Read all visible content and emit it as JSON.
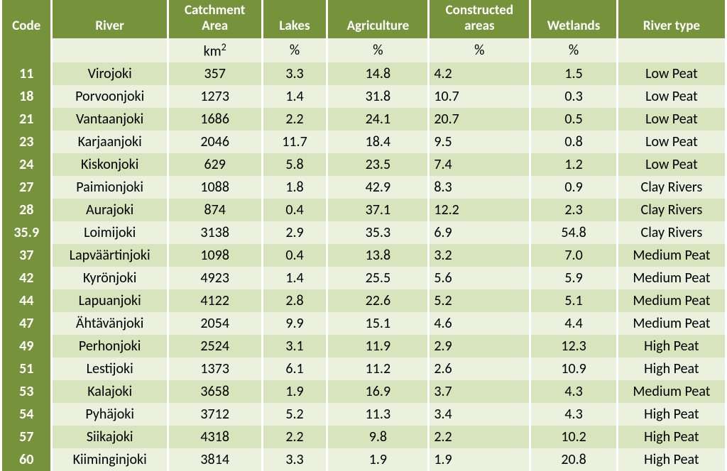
{
  "table": {
    "colors": {
      "header_bg": "#76933c",
      "header_fg": "#ffffff",
      "row_odd_bg": "#ebf1de",
      "row_even_bg": "#d8e4bc",
      "border": "#ffffff",
      "text": "#000000"
    },
    "font": {
      "family": "Calibri",
      "header_size_pt": 19,
      "cell_size_pt": 20,
      "header_weight": 700
    },
    "column_widths_pct": [
      7,
      16,
      13,
      9,
      14,
      14,
      12,
      15
    ],
    "columns": [
      {
        "key": "code",
        "label": "Code",
        "unit": ""
      },
      {
        "key": "river",
        "label": "River",
        "unit": ""
      },
      {
        "key": "catchment",
        "label": "Catchment Area",
        "unit": "km²"
      },
      {
        "key": "lakes",
        "label": "Lakes",
        "unit": "%"
      },
      {
        "key": "agriculture",
        "label": "Agriculture",
        "unit": "%"
      },
      {
        "key": "constructed",
        "label": "Constructed areas",
        "unit": "%"
      },
      {
        "key": "wetlands",
        "label": "Wetlands",
        "unit": "%"
      },
      {
        "key": "rivertype",
        "label": "River type",
        "unit": ""
      }
    ],
    "rows": [
      {
        "code": "11",
        "river": "Virojoki",
        "catchment": "357",
        "lakes": "3.3",
        "agriculture": "14.8",
        "constructed": "4.2",
        "wetlands": "1.5",
        "rivertype": "Low Peat"
      },
      {
        "code": "18",
        "river": "Porvoonjoki",
        "catchment": "1273",
        "lakes": "1.4",
        "agriculture": "31.8",
        "constructed": "10.7",
        "wetlands": "0.3",
        "rivertype": "Low Peat"
      },
      {
        "code": "21",
        "river": "Vantaanjoki",
        "catchment": "1686",
        "lakes": "2.2",
        "agriculture": "24.1",
        "constructed": "20.7",
        "wetlands": "0.5",
        "rivertype": "Low Peat"
      },
      {
        "code": "23",
        "river": "Karjaanjoki",
        "catchment": "2046",
        "lakes": "11.7",
        "agriculture": "18.4",
        "constructed": "9.5",
        "wetlands": "0.8",
        "rivertype": "Low Peat"
      },
      {
        "code": "24",
        "river": "Kiskonjoki",
        "catchment": "629",
        "lakes": "5.8",
        "agriculture": "23.5",
        "constructed": "7.4",
        "wetlands": "1.2",
        "rivertype": "Low Peat"
      },
      {
        "code": "27",
        "river": "Paimionjoki",
        "catchment": "1088",
        "lakes": "1.8",
        "agriculture": "42.9",
        "constructed": "8.3",
        "wetlands": "0.9",
        "rivertype": "Clay Rivers"
      },
      {
        "code": "28",
        "river": "Aurajoki",
        "catchment": "874",
        "lakes": "0.4",
        "agriculture": "37.1",
        "constructed": "12.2",
        "wetlands": "2.3",
        "rivertype": "Clay Rivers"
      },
      {
        "code": "35.9",
        "river": "Loimijoki",
        "catchment": "3138",
        "lakes": "2.9",
        "agriculture": "35.3",
        "constructed": "6.9",
        "wetlands": "54.8",
        "rivertype": "Clay Rivers"
      },
      {
        "code": "37",
        "river": "Lapväärtinjoki",
        "catchment": "1098",
        "lakes": "0.4",
        "agriculture": "13.8",
        "constructed": "3.2",
        "wetlands": "7.0",
        "rivertype": "Medium Peat"
      },
      {
        "code": "42",
        "river": "Kyrönjoki",
        "catchment": "4923",
        "lakes": "1.4",
        "agriculture": "25.5",
        "constructed": "5.6",
        "wetlands": "5.9",
        "rivertype": "Medium Peat"
      },
      {
        "code": "44",
        "river": "Lapuanjoki",
        "catchment": "4122",
        "lakes": "2.8",
        "agriculture": "22.6",
        "constructed": "5.2",
        "wetlands": "5.1",
        "rivertype": "Medium Peat"
      },
      {
        "code": "47",
        "river": "Ähtävänjoki",
        "catchment": "2054",
        "lakes": "9.9",
        "agriculture": "15.1",
        "constructed": "4.6",
        "wetlands": "4.4",
        "rivertype": "Medium Peat"
      },
      {
        "code": "49",
        "river": "Perhonjoki",
        "catchment": "2524",
        "lakes": "3.1",
        "agriculture": "11.9",
        "constructed": "2.9",
        "wetlands": "12.3",
        "rivertype": "High Peat"
      },
      {
        "code": "51",
        "river": "Lestijoki",
        "catchment": "1373",
        "lakes": "6.1",
        "agriculture": "11.2",
        "constructed": "2.6",
        "wetlands": "10.9",
        "rivertype": "High Peat"
      },
      {
        "code": "53",
        "river": "Kalajoki",
        "catchment": "3658",
        "lakes": "1.9",
        "agriculture": "16.9",
        "constructed": "3.7",
        "wetlands": "4.3",
        "rivertype": "Medium Peat"
      },
      {
        "code": "54",
        "river": "Pyhäjoki",
        "catchment": "3712",
        "lakes": "5.2",
        "agriculture": "11.3",
        "constructed": "3.4",
        "wetlands": "4.3",
        "rivertype": "High Peat"
      },
      {
        "code": "57",
        "river": "Siikajoki",
        "catchment": "4318",
        "lakes": "2.2",
        "agriculture": "9.8",
        "constructed": "2.2",
        "wetlands": "10.2",
        "rivertype": "High Peat"
      },
      {
        "code": "60",
        "river": "Kiiminginjoki",
        "catchment": "3814",
        "lakes": "3.3",
        "agriculture": "1.9",
        "constructed": "1.9",
        "wetlands": "20.8",
        "rivertype": "High Peat"
      }
    ]
  }
}
